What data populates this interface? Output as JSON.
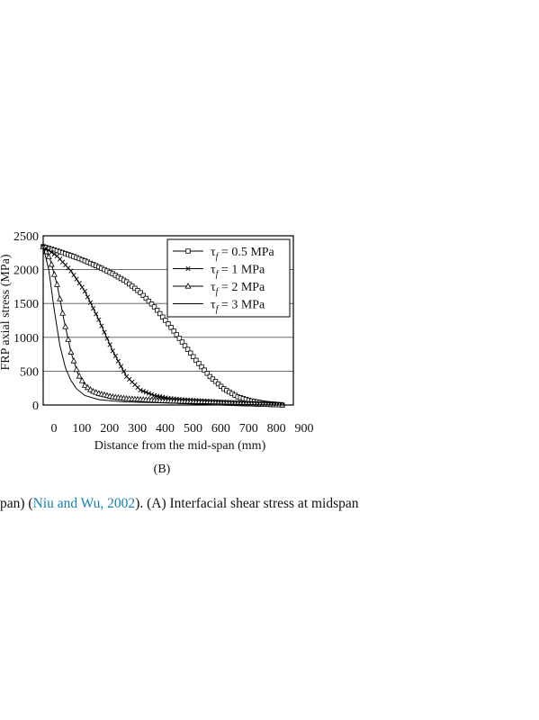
{
  "caption": {
    "before": "pan) (",
    "citation": "Niu and Wu, 2002",
    "after": "). (A) Interfacial shear stress at midspan"
  },
  "panel_label": "(B)",
  "chart_data": {
    "type": "line",
    "xlabel": "Distance from the mid-span (mm)",
    "ylabel": "FRP axial stress (MPa)",
    "xlim": [
      0,
      900
    ],
    "ylim": [
      0,
      2500
    ],
    "xticks": [
      "0",
      "100",
      "200",
      "300",
      "400",
      "500",
      "600",
      "700",
      "800",
      "900"
    ],
    "yticks": [
      "0",
      "500",
      "1000",
      "1500",
      "2000",
      "2500"
    ],
    "grid": "horizontal",
    "legend_position": "top-right",
    "series": [
      {
        "name": "τf = 0.5 MPa",
        "label_sym": "τ",
        "label_sub": "f",
        "label_rest": " = 0.5 MPa",
        "marker": "square",
        "x": [
          0,
          50,
          100,
          150,
          200,
          250,
          300,
          350,
          400,
          450,
          500,
          550,
          600,
          650,
          700,
          750,
          800,
          850,
          860
        ],
        "y": [
          2340,
          2280,
          2210,
          2130,
          2040,
          1940,
          1820,
          1660,
          1450,
          1200,
          930,
          660,
          420,
          240,
          120,
          60,
          25,
          5,
          0
        ]
      },
      {
        "name": "τf = 1 MPa",
        "label_sym": "τ",
        "label_sub": "f",
        "label_rest": " = 1 MPa",
        "marker": "x",
        "x": [
          0,
          50,
          100,
          150,
          200,
          250,
          300,
          350,
          400,
          450,
          500,
          600,
          700,
          800,
          860
        ],
        "y": [
          2340,
          2200,
          1980,
          1680,
          1260,
          800,
          420,
          220,
          140,
          100,
          80,
          55,
          35,
          15,
          0
        ]
      },
      {
        "name": "τf = 2 MPa",
        "label_sym": "τ",
        "label_sub": "f",
        "label_rest": " = 2 MPa",
        "marker": "triangle",
        "x": [
          0,
          25,
          50,
          75,
          100,
          125,
          150,
          175,
          200,
          250,
          300,
          400,
          500,
          600,
          700,
          800,
          860
        ],
        "y": [
          2340,
          2150,
          1780,
          1250,
          780,
          460,
          290,
          210,
          170,
          120,
          95,
          70,
          50,
          35,
          20,
          8,
          0
        ]
      },
      {
        "name": "τf = 3 MPa",
        "label_sym": "τ",
        "label_sub": "f",
        "label_rest": " = 3 MPa",
        "marker": "none",
        "x": [
          0,
          20,
          40,
          60,
          80,
          100,
          120,
          150,
          200,
          250,
          300,
          400,
          500,
          600,
          700,
          800,
          860
        ],
        "y": [
          2340,
          2000,
          1400,
          880,
          550,
          360,
          240,
          140,
          80,
          60,
          45,
          35,
          25,
          18,
          10,
          4,
          0
        ]
      }
    ]
  }
}
